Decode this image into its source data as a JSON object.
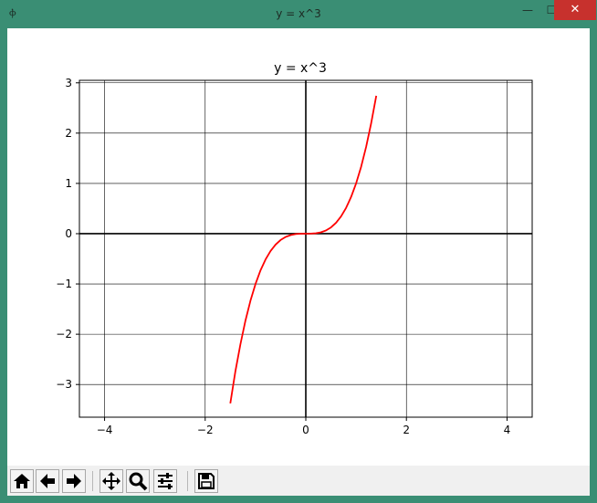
{
  "window": {
    "title": "y = x^3",
    "app_icon_text": "Ⲫ",
    "min_label": "—",
    "max_label": "☐",
    "close_label": "✕"
  },
  "toolbar": {
    "buttons": [
      {
        "name": "home-button",
        "icon": "home-icon"
      },
      {
        "name": "back-button",
        "icon": "arrow-left-icon"
      },
      {
        "name": "forward-button",
        "icon": "arrow-right-icon"
      },
      {
        "name": "pan-button",
        "icon": "move-icon"
      },
      {
        "name": "zoom-button",
        "icon": "zoom-icon"
      },
      {
        "name": "configure-subplots-button",
        "icon": "sliders-icon"
      },
      {
        "name": "save-button",
        "icon": "save-icon"
      }
    ]
  },
  "chart_data": {
    "type": "line",
    "title": "y = x^3",
    "xlabel": "",
    "ylabel": "",
    "xlim": [
      -4.5,
      4.5
    ],
    "ylim": [
      -3.65,
      3.05
    ],
    "xticks": [
      -4,
      -2,
      0,
      2,
      4
    ],
    "yticks": [
      -3,
      -2,
      -1,
      0,
      1,
      2,
      3
    ],
    "xtick_labels": [
      "−4",
      "−2",
      "0",
      "2",
      "4"
    ],
    "ytick_labels": [
      "−3",
      "−2",
      "−1",
      "0",
      "1",
      "2",
      "3"
    ],
    "grid": true,
    "series": [
      {
        "color": "#ff0000",
        "x": [
          -1.5,
          -1.4,
          -1.3,
          -1.2,
          -1.1,
          -1.0,
          -0.9,
          -0.8,
          -0.7,
          -0.6,
          -0.5,
          -0.4,
          -0.3,
          -0.2,
          -0.1,
          0.0,
          0.1,
          0.2,
          0.3,
          0.4,
          0.5,
          0.6,
          0.7,
          0.8,
          0.9,
          1.0,
          1.1,
          1.2,
          1.3,
          1.4
        ],
        "y": [
          -3.375,
          -2.744,
          -2.197,
          -1.728,
          -1.331,
          -1.0,
          -0.729,
          -0.512,
          -0.343,
          -0.216,
          -0.125,
          -0.064,
          -0.027,
          -0.008,
          -0.001,
          0.0,
          0.001,
          0.008,
          0.027,
          0.064,
          0.125,
          0.216,
          0.343,
          0.512,
          0.729,
          1.0,
          1.331,
          1.728,
          2.197,
          2.744
        ]
      }
    ]
  }
}
